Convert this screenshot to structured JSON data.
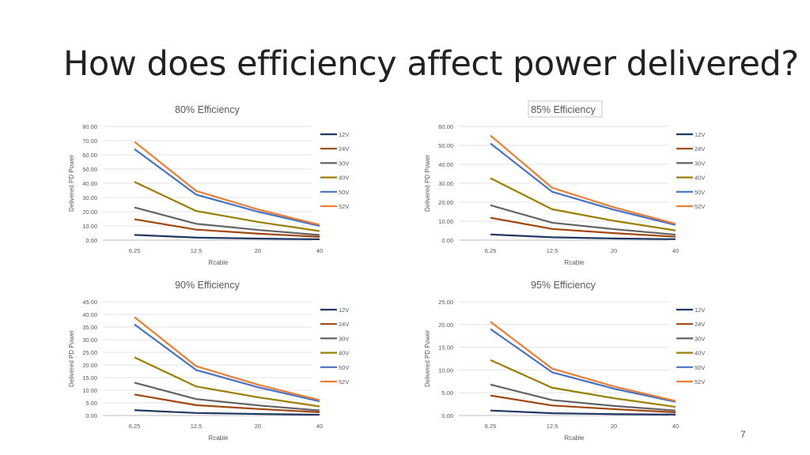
{
  "slide": {
    "title": "How does efficiency affect power delivered?",
    "page_number": "7"
  },
  "chart_data": [
    {
      "type": "line",
      "title": "80% Efficiency",
      "xlabel": "Rcable",
      "ylabel": "Delivered PD Power",
      "categories": [
        "6.25",
        "12.5",
        "20",
        "40"
      ],
      "ylim": [
        0,
        80
      ],
      "ytick_labels": [
        "0.00",
        "10.00",
        "20.00",
        "30.00",
        "40.00",
        "50.00",
        "60.00",
        "70.00",
        "80.00"
      ],
      "grid": true,
      "legend": "right",
      "series": [
        {
          "name": "12V",
          "color": "#1f3864",
          "values": [
            3.7,
            1.8,
            1.1,
            0.6
          ]
        },
        {
          "name": "24V",
          "color": "#a0460e",
          "values": [
            14.7,
            7.4,
            4.6,
            2.3
          ]
        },
        {
          "name": "30V",
          "color": "#636363",
          "values": [
            23.0,
            11.5,
            7.2,
            3.6
          ]
        },
        {
          "name": "40V",
          "color": "#9c7f00",
          "values": [
            41.0,
            20.5,
            12.8,
            6.4
          ]
        },
        {
          "name": "50V",
          "color": "#4472c4",
          "values": [
            64.0,
            32.0,
            20.0,
            10.0
          ]
        },
        {
          "name": "52V",
          "color": "#ed7d31",
          "values": [
            69.2,
            34.6,
            21.6,
            10.8
          ]
        }
      ]
    },
    {
      "type": "line",
      "title": "85% Efficiency",
      "xlabel": "Rcable",
      "ylabel": "Delivered PD Power",
      "categories": [
        "6.25",
        "12.5",
        "20",
        "40"
      ],
      "ylim": [
        0,
        60
      ],
      "ytick_labels": [
        "0.00",
        "10.00",
        "20.00",
        "30.00",
        "40.00",
        "50.00",
        "60.00"
      ],
      "grid": true,
      "legend": "right",
      "series": [
        {
          "name": "12V",
          "color": "#1f3864",
          "values": [
            3.0,
            1.5,
            0.9,
            0.5
          ]
        },
        {
          "name": "24V",
          "color": "#a0460e",
          "values": [
            11.8,
            5.9,
            3.7,
            1.8
          ]
        },
        {
          "name": "30V",
          "color": "#636363",
          "values": [
            18.4,
            9.2,
            5.8,
            2.9
          ]
        },
        {
          "name": "40V",
          "color": "#9c7f00",
          "values": [
            32.7,
            16.3,
            10.2,
            5.1
          ]
        },
        {
          "name": "50V",
          "color": "#4472c4",
          "values": [
            51.0,
            25.5,
            16.0,
            8.0
          ]
        },
        {
          "name": "52V",
          "color": "#ed7d31",
          "values": [
            55.2,
            27.6,
            17.3,
            8.6
          ]
        }
      ]
    },
    {
      "type": "line",
      "title": "90% Efficiency",
      "xlabel": "Rcable",
      "ylabel": "Delivered PD Power",
      "categories": [
        "6.25",
        "12.5",
        "20",
        "40"
      ],
      "ylim": [
        0,
        45
      ],
      "ytick_labels": [
        "0.00",
        "5.00",
        "10.00",
        "15.00",
        "20.00",
        "25.00",
        "30.00",
        "35.00",
        "40.00",
        "45.00"
      ],
      "grid": true,
      "legend": "right",
      "series": [
        {
          "name": "12V",
          "color": "#1f3864",
          "values": [
            2.1,
            1.0,
            0.6,
            0.3
          ]
        },
        {
          "name": "24V",
          "color": "#a0460e",
          "values": [
            8.3,
            4.1,
            2.6,
            1.3
          ]
        },
        {
          "name": "30V",
          "color": "#636363",
          "values": [
            13.0,
            6.5,
            4.0,
            2.0
          ]
        },
        {
          "name": "40V",
          "color": "#9c7f00",
          "values": [
            23.0,
            11.5,
            7.2,
            3.6
          ]
        },
        {
          "name": "50V",
          "color": "#4472c4",
          "values": [
            36.0,
            18.0,
            11.2,
            5.6
          ]
        },
        {
          "name": "52V",
          "color": "#ed7d31",
          "values": [
            38.9,
            19.5,
            12.2,
            6.1
          ]
        }
      ]
    },
    {
      "type": "line",
      "title": "95% Efficiency",
      "xlabel": "Rcable",
      "ylabel": "Delivered PD Power",
      "categories": [
        "6.25",
        "12.5",
        "20",
        "40"
      ],
      "ylim": [
        0,
        25
      ],
      "ytick_labels": [
        "0.00",
        "5.00",
        "10.00",
        "15.00",
        "20.00",
        "25.00"
      ],
      "grid": true,
      "legend": "right",
      "series": [
        {
          "name": "12V",
          "color": "#1f3864",
          "values": [
            1.1,
            0.5,
            0.3,
            0.2
          ]
        },
        {
          "name": "24V",
          "color": "#a0460e",
          "values": [
            4.4,
            2.2,
            1.4,
            0.7
          ]
        },
        {
          "name": "30V",
          "color": "#636363",
          "values": [
            6.8,
            3.4,
            2.1,
            1.1
          ]
        },
        {
          "name": "40V",
          "color": "#9c7f00",
          "values": [
            12.2,
            6.1,
            3.8,
            1.9
          ]
        },
        {
          "name": "50V",
          "color": "#4472c4",
          "values": [
            19.0,
            9.5,
            5.9,
            3.0
          ]
        },
        {
          "name": "52V",
          "color": "#ed7d31",
          "values": [
            20.6,
            10.3,
            6.4,
            3.2
          ]
        }
      ]
    }
  ]
}
